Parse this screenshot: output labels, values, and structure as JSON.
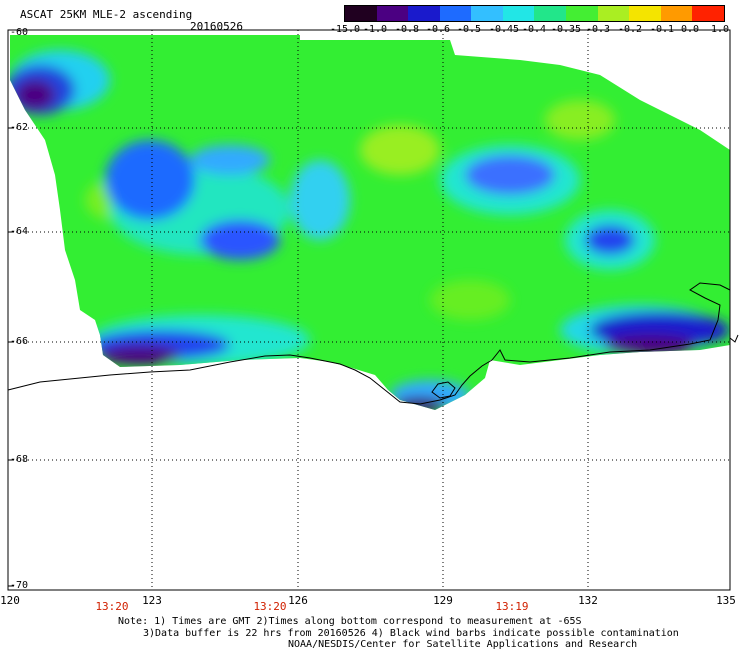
{
  "header": {
    "title": "ASCAT 25KM MLE-2 ascending",
    "date": "20160526"
  },
  "colorbar": {
    "labels": [
      "-15.0",
      "-1.0",
      "-0.8",
      "-0.6",
      "-0.5",
      "-0.45",
      "-0.4",
      "-0.35",
      "-0.3",
      "-0.2",
      "-0.1",
      "0.0",
      "1.0"
    ],
    "colors": [
      "#200020",
      "#4b0082",
      "#1a1acc",
      "#1e6bff",
      "#33bfff",
      "#22e6e6",
      "#22e68a",
      "#44ee33",
      "#aaee22",
      "#f4e400",
      "#ff9a00",
      "#ff2200"
    ]
  },
  "axes": {
    "lat_labels": [
      "-60",
      "-62",
      "-64",
      "-66",
      "-68",
      "-70"
    ],
    "lon_labels": [
      "120",
      "123",
      "126",
      "129",
      "132",
      "135"
    ]
  },
  "times": [
    "13:20",
    "13:20",
    "13:19"
  ],
  "notes": {
    "line1": "Note: 1) Times are GMT 2)Times along bottom correspond to measurement at -65S",
    "line2": "3)Data buffer is 22 hrs from 20160526 4) Black wind barbs indicate possible contamination",
    "line3": "NOAA/NESDIS/Center for Satellite Applications and Research"
  },
  "palette": {
    "land": "#ffffff",
    "coast": "#000000",
    "field_main": "#33ee33"
  }
}
